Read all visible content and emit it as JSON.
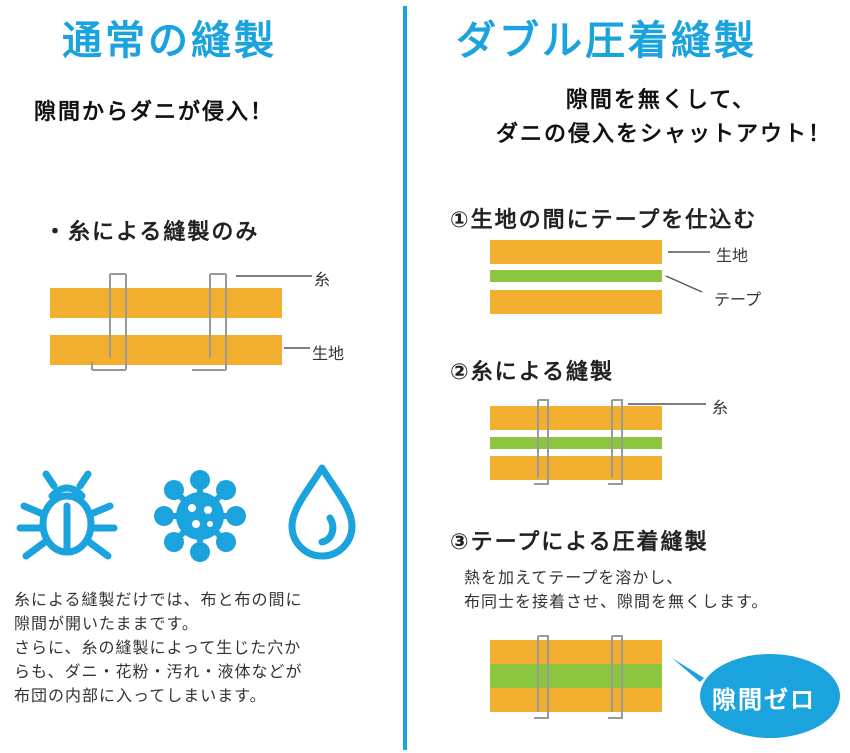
{
  "colors": {
    "accent": "#1aa3dc",
    "fabric": "#f2ae2f",
    "tape": "#8cc63f",
    "thread": "#9a9a9a"
  },
  "left": {
    "title": "通常の縫製",
    "subtitle": "隙間からダニが侵入！",
    "section_label": "・糸による縫製のみ",
    "diagram_labels": {
      "thread": "糸",
      "fabric": "生地"
    },
    "icons": [
      "bug-icon",
      "pollen-icon",
      "liquid-drop-icon"
    ],
    "description": [
      "糸による縫製だけでは、布と布の間に",
      "隙間が開いたままです。",
      "さらに、糸の縫製によって生じた穴か",
      "らも、ダニ・花粉・汚れ・液体などが",
      "布団の内部に入ってしまいます。"
    ]
  },
  "right": {
    "title": "ダブル圧着縫製",
    "subtitle_lines": [
      "隙間を無くして、",
      "ダニの侵入をシャットアウト！"
    ],
    "step1": {
      "label": "①生地の間にテープを仕込む",
      "labels": {
        "fabric": "生地",
        "tape": "テープ"
      }
    },
    "step2": {
      "label": "②糸による縫製",
      "labels": {
        "thread": "糸"
      }
    },
    "step3": {
      "label": "③テープによる圧着縫製",
      "description": [
        "熱を加えてテープを溶かし、",
        "布同士を接着させ、隙間を無くします。"
      ],
      "badge": "隙間ゼロ"
    }
  }
}
